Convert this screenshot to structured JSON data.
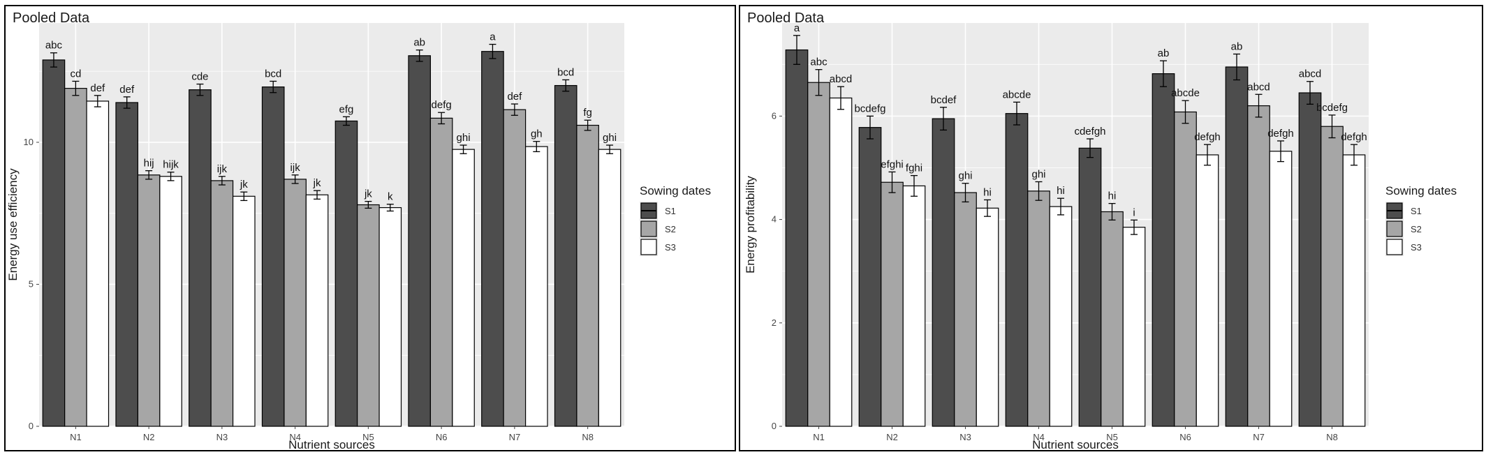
{
  "chart_data": [
    {
      "type": "bar",
      "title": "Pooled Data",
      "xlabel": "Nutrient sources",
      "ylabel": "Energy use efficiency",
      "categories": [
        "N1",
        "N2",
        "N3",
        "N4",
        "N5",
        "N6",
        "N7",
        "N8"
      ],
      "ylim": [
        0,
        14.2
      ],
      "yticks": [
        0,
        5,
        10
      ],
      "grid": true,
      "legend_title": "Sowing dates",
      "legend_position": "right",
      "series": [
        {
          "name": "S1",
          "color": "#4d4d4d",
          "values": [
            12.9,
            11.4,
            11.85,
            11.95,
            10.75,
            13.05,
            13.2,
            12.0
          ],
          "errors": [
            0.25,
            0.2,
            0.2,
            0.2,
            0.15,
            0.2,
            0.25,
            0.2
          ],
          "labels": [
            "abc",
            "def",
            "cde",
            "bcd",
            "efg",
            "ab",
            "a",
            "bcd"
          ]
        },
        {
          "name": "S2",
          "color": "#a6a6a6",
          "values": [
            11.9,
            8.85,
            8.65,
            8.7,
            7.8,
            10.85,
            11.15,
            10.6
          ],
          "errors": [
            0.25,
            0.15,
            0.15,
            0.15,
            0.12,
            0.2,
            0.2,
            0.18
          ],
          "labels": [
            "cd",
            "hij",
            "ijk",
            "ijk",
            "jk",
            "defg",
            "def",
            "fg"
          ]
        },
        {
          "name": "S3",
          "color": "#ffffff",
          "values": [
            11.45,
            8.8,
            8.1,
            8.15,
            7.7,
            9.75,
            9.85,
            9.75
          ],
          "errors": [
            0.2,
            0.15,
            0.15,
            0.15,
            0.12,
            0.15,
            0.18,
            0.15
          ],
          "labels": [
            "def",
            "hijk",
            "jk",
            "jk",
            "k",
            "ghi",
            "gh",
            "ghi"
          ]
        }
      ]
    },
    {
      "type": "bar",
      "title": "Pooled Data",
      "xlabel": "Nutrient sources",
      "ylabel": "Energy profitability",
      "categories": [
        "N1",
        "N2",
        "N3",
        "N4",
        "N5",
        "N6",
        "N7",
        "N8"
      ],
      "ylim": [
        0,
        7.8
      ],
      "yticks": [
        0,
        2,
        4,
        6
      ],
      "grid": true,
      "legend_title": "Sowing dates",
      "legend_position": "right",
      "series": [
        {
          "name": "S1",
          "color": "#4d4d4d",
          "values": [
            7.28,
            5.78,
            5.95,
            6.05,
            5.38,
            6.82,
            6.95,
            6.45
          ],
          "errors": [
            0.28,
            0.22,
            0.22,
            0.22,
            0.18,
            0.25,
            0.25,
            0.22
          ],
          "labels": [
            "a",
            "bcdefg",
            "bcdef",
            "abcde",
            "cdefgh",
            "ab",
            "ab",
            "abcd"
          ]
        },
        {
          "name": "S2",
          "color": "#a6a6a6",
          "values": [
            6.65,
            4.72,
            4.52,
            4.55,
            4.15,
            6.08,
            6.2,
            5.8
          ],
          "errors": [
            0.25,
            0.2,
            0.18,
            0.18,
            0.16,
            0.22,
            0.22,
            0.22
          ],
          "labels": [
            "abc",
            "efghi",
            "ghi",
            "ghi",
            "hi",
            "abcde",
            "abcd",
            "bcdefg"
          ]
        },
        {
          "name": "S3",
          "color": "#ffffff",
          "values": [
            6.35,
            4.65,
            4.22,
            4.25,
            3.85,
            5.25,
            5.32,
            5.25
          ],
          "errors": [
            0.22,
            0.2,
            0.16,
            0.16,
            0.14,
            0.2,
            0.2,
            0.2
          ],
          "labels": [
            "abcd",
            "fghi",
            "hi",
            "hi",
            "i",
            "defgh",
            "defgh",
            "defgh"
          ]
        }
      ]
    }
  ]
}
